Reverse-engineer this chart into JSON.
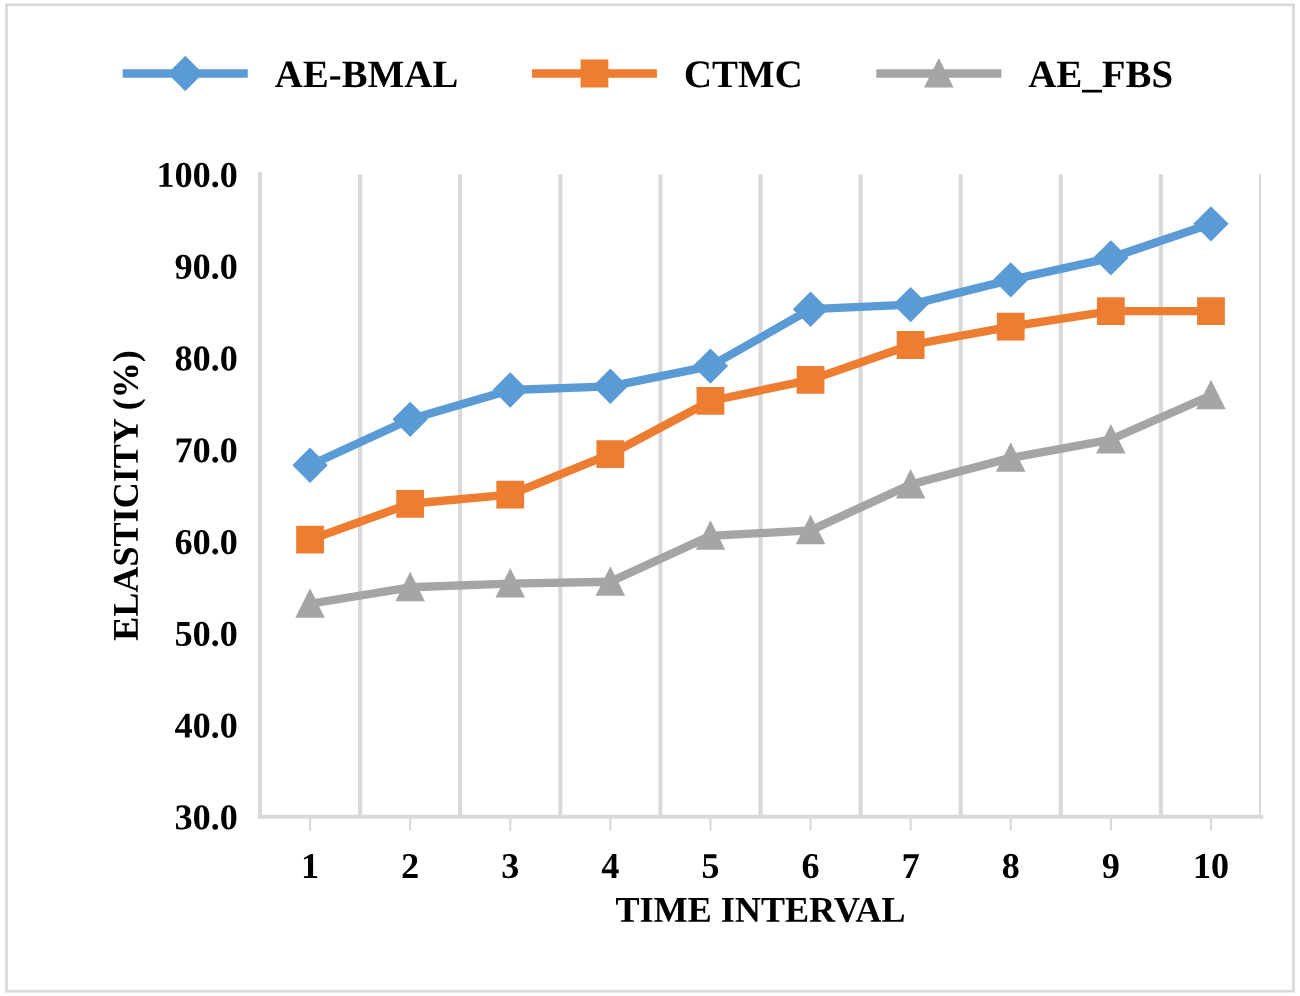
{
  "chart_data": {
    "type": "line",
    "xlabel": "TIME INTERVAL",
    "ylabel": "ELASTICITY (%)",
    "categories": [
      "1",
      "2",
      "3",
      "4",
      "5",
      "6",
      "7",
      "8",
      "9",
      "10"
    ],
    "series": [
      {
        "name": "AE-BMAL",
        "color": "#5b9bd5",
        "marker": "diamond",
        "values": [
          68.3,
          73.3,
          76.5,
          76.9,
          79.1,
          85.3,
          85.8,
          88.5,
          90.9,
          94.6
        ]
      },
      {
        "name": "CTMC",
        "color": "#ed7d31",
        "marker": "square",
        "values": [
          60.2,
          64.1,
          65.1,
          69.5,
          75.3,
          77.6,
          81.4,
          83.4,
          85.1,
          85.1
        ]
      },
      {
        "name": "AE_FBS",
        "color": "#a5a5a5",
        "marker": "triangle",
        "values": [
          53.2,
          55.0,
          55.4,
          55.6,
          60.6,
          61.2,
          66.2,
          69.1,
          71.1,
          75.9
        ]
      }
    ],
    "ylim": [
      30,
      100
    ],
    "yticks": [
      {
        "value": 30,
        "label": "30.0"
      },
      {
        "value": 40,
        "label": "40.0"
      },
      {
        "value": 50,
        "label": "50.0"
      },
      {
        "value": 60,
        "label": "60.0"
      },
      {
        "value": 70,
        "label": "70.0"
      },
      {
        "value": 80,
        "label": "80.0"
      },
      {
        "value": 90,
        "label": "90.0"
      },
      {
        "value": 100,
        "label": "100.0"
      }
    ],
    "grid": "x",
    "legend": "top",
    "line_style": "solid"
  }
}
